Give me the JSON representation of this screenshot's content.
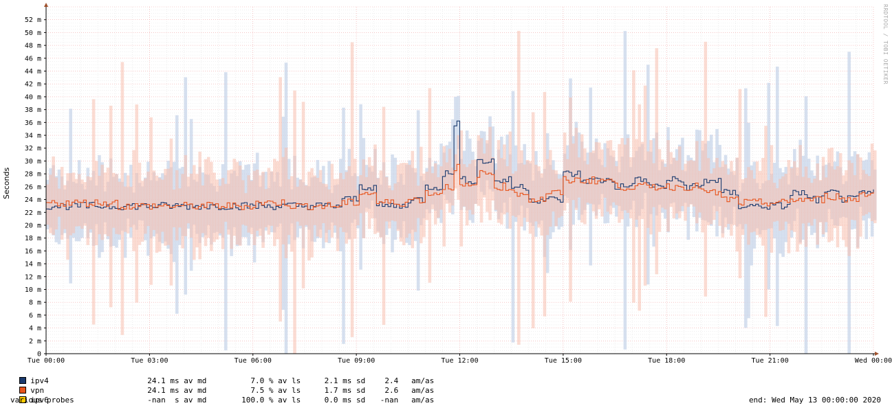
{
  "chart_data": {
    "type": "line",
    "title": "",
    "ylabel": "Seconds",
    "xlabel": "",
    "ylim": [
      0,
      54
    ],
    "y_ticks": [
      "0",
      "2 m",
      "4 m",
      "6 m",
      "8 m",
      "10 m",
      "12 m",
      "14 m",
      "16 m",
      "18 m",
      "20 m",
      "22 m",
      "24 m",
      "26 m",
      "28 m",
      "30 m",
      "32 m",
      "34 m",
      "36 m",
      "38 m",
      "40 m",
      "42 m",
      "44 m",
      "46 m",
      "48 m",
      "50 m",
      "52 m"
    ],
    "x_ticks": [
      "Tue 00:00",
      "Tue 03:00",
      "Tue 06:00",
      "Tue 09:00",
      "Tue 12:00",
      "Tue 15:00",
      "Tue 18:00",
      "Tue 21:00",
      "Wed 00:00"
    ],
    "x_range_hours": [
      0,
      24
    ],
    "grid": true,
    "series": [
      {
        "name": "ipv4",
        "color": "#1a3a6e",
        "smoke_color": "#c8d6ea",
        "x_hours": [
          0,
          1,
          2,
          3,
          4,
          5,
          6,
          7,
          8,
          8.5,
          9,
          9.5,
          10,
          10.5,
          11,
          11.5,
          11.8,
          12,
          12.5,
          13,
          13.5,
          14,
          14.5,
          15,
          15.5,
          16,
          16.5,
          17,
          17.5,
          18,
          18.5,
          19,
          19.5,
          20,
          20.5,
          21,
          21.5,
          22,
          22.5,
          23,
          23.5,
          24
        ],
        "values": [
          23,
          23,
          23,
          23,
          23,
          23,
          23,
          23,
          23,
          24,
          26,
          23,
          23,
          24,
          26,
          28,
          36,
          27,
          30,
          27,
          26,
          24,
          24,
          28,
          27,
          27,
          26,
          27,
          26,
          27,
          26,
          27,
          25,
          23,
          23,
          23,
          25,
          24,
          25,
          24,
          25,
          23
        ]
      },
      {
        "name": "vpn",
        "color": "#e8541c",
        "smoke_color": "#f7c0ae",
        "x_hours": [
          0,
          1,
          2,
          3,
          4,
          5,
          6,
          7,
          8,
          8.5,
          9,
          9.5,
          10,
          10.5,
          11,
          11.5,
          11.8,
          12,
          12.5,
          13,
          13.5,
          14,
          14.5,
          15,
          15.5,
          16,
          16.5,
          17,
          17.5,
          18,
          18.5,
          19,
          19.5,
          20,
          20.5,
          21,
          21.5,
          22,
          22.5,
          23,
          23.5,
          24
        ],
        "values": [
          23.5,
          23.5,
          23,
          23,
          23,
          23,
          23.5,
          23,
          23,
          23.5,
          25,
          23.5,
          23.5,
          24,
          25,
          26,
          29,
          26,
          28,
          26,
          25,
          24,
          25,
          27,
          27,
          27,
          26,
          26,
          26,
          26,
          26,
          25,
          24,
          23.5,
          23.5,
          23.5,
          24,
          24,
          24.5,
          24,
          25,
          23.5
        ]
      },
      {
        "name": "ipv6",
        "color": "#ffcc00",
        "smoke_color": "#fff0a0",
        "x_hours": [],
        "values": []
      }
    ]
  },
  "legend": [
    {
      "name": "ipv4",
      "color": "#1a3a6e",
      "median": "24.1 ms av md",
      "loss": "7.0 % av ls",
      "sd": "2.1 ms sd",
      "amas": "2.4",
      "amas_unit": "am/as"
    },
    {
      "name": "vpn",
      "color": "#e8541c",
      "median": "24.1 ms av md",
      "loss": "7.5 % av ls",
      "sd": "1.7 ms sd",
      "amas": "2.6",
      "amas_unit": "am/as"
    },
    {
      "name": "ipv6",
      "color": "#ffcc00",
      "median": "-nan  s av md",
      "loss": "100.0 % av ls",
      "sd": "0.0 ms sd",
      "amas": "-nan",
      "amas_unit": "am/as"
    }
  ],
  "footer": {
    "left": "various probes",
    "right": "end: Wed May 13 00:00:00 2020"
  },
  "watermark": "RRDTOOL / TOBI OETIKER"
}
